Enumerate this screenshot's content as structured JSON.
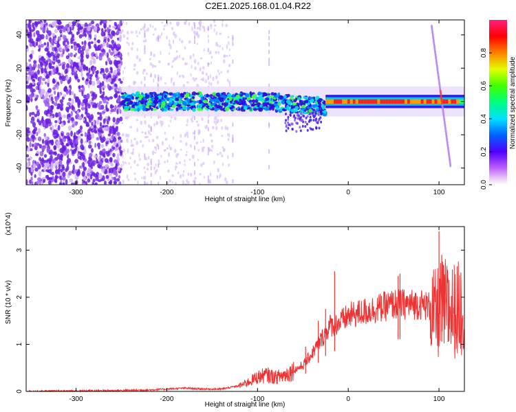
{
  "title": "C2E1.2025.168.01.04.R22",
  "colors": {
    "snr_line": "#ee3333",
    "spectrogram_noise": "#6a1fe0",
    "spectrogram_faint": "#c9a6f5"
  },
  "chart_data": [
    {
      "type": "heatmap",
      "xlabel": "Height of straight line (km)",
      "ylabel": "Frequency (Hz)",
      "xlim": [
        -355,
        128
      ],
      "ylim": [
        -50,
        49
      ],
      "xticks": [
        -300,
        -200,
        -100,
        0,
        100
      ],
      "yticks": [
        -40,
        -20,
        0,
        20,
        40
      ],
      "grid": false,
      "colorbar": {
        "label": "Normalized spectral amplitude",
        "range": [
          0,
          1
        ],
        "ticks": [
          "0.0",
          "0.2",
          "0.4",
          "0.6",
          "0.8"
        ],
        "colormap": "rainbow (white-magenta-blue-cyan-green-yellow-red-pink)"
      },
      "features": {
        "noise_region_x": [
          -355,
          -250
        ],
        "signal_band_center_hz": 0,
        "signal_band_halfwidth_hz": 5,
        "strong_signal_x": [
          -25,
          120
        ],
        "slanted_feature": {
          "x_start": 92,
          "y_start": 45,
          "x_end": 113,
          "y_end": -40
        }
      }
    },
    {
      "type": "line",
      "xlabel": "Height of straight line (km)",
      "ylabel": "SNR (10 * v/v)",
      "y_multiplier": "(x10^4)",
      "xlim": [
        -355,
        128
      ],
      "ylim": [
        0,
        3.5
      ],
      "xticks": [
        -300,
        -200,
        -100,
        0,
        100
      ],
      "yticks": [
        0,
        1,
        2,
        3
      ],
      "grid": false,
      "series": [
        {
          "x": [
            -355,
            -300,
            -250,
            -220,
            -200,
            -180,
            -160,
            -140,
            -120,
            -110,
            -100,
            -90,
            -80,
            -70,
            -60,
            -50,
            -40,
            -30,
            -20,
            -10,
            0,
            10,
            20,
            30,
            40,
            50,
            60,
            70,
            80,
            90,
            95,
            100,
            105,
            110,
            115,
            128
          ],
          "y": [
            0.0,
            0.01,
            0.02,
            0.03,
            0.05,
            0.07,
            0.05,
            0.05,
            0.12,
            0.2,
            0.3,
            0.35,
            0.3,
            0.35,
            0.45,
            0.55,
            0.8,
            1.1,
            1.4,
            1.45,
            1.6,
            1.65,
            1.7,
            1.75,
            1.8,
            1.85,
            1.85,
            1.85,
            1.85,
            1.8,
            1.6,
            1.7,
            1.8,
            1.75,
            1.72,
            1.75
          ]
        }
      ],
      "spikes": [
        {
          "x": -47,
          "y": 0.95
        },
        {
          "x": -33,
          "y": 1.5
        },
        {
          "x": -25,
          "y": 1.75
        },
        {
          "x": -15,
          "y": 2.55
        },
        {
          "x": 55,
          "y": 2.45
        },
        {
          "x": 57,
          "y": 2.5
        },
        {
          "x": 100,
          "y": 3.4
        },
        {
          "x": 103,
          "y": 2.9
        },
        {
          "x": 110,
          "y": 2.4
        }
      ]
    }
  ]
}
